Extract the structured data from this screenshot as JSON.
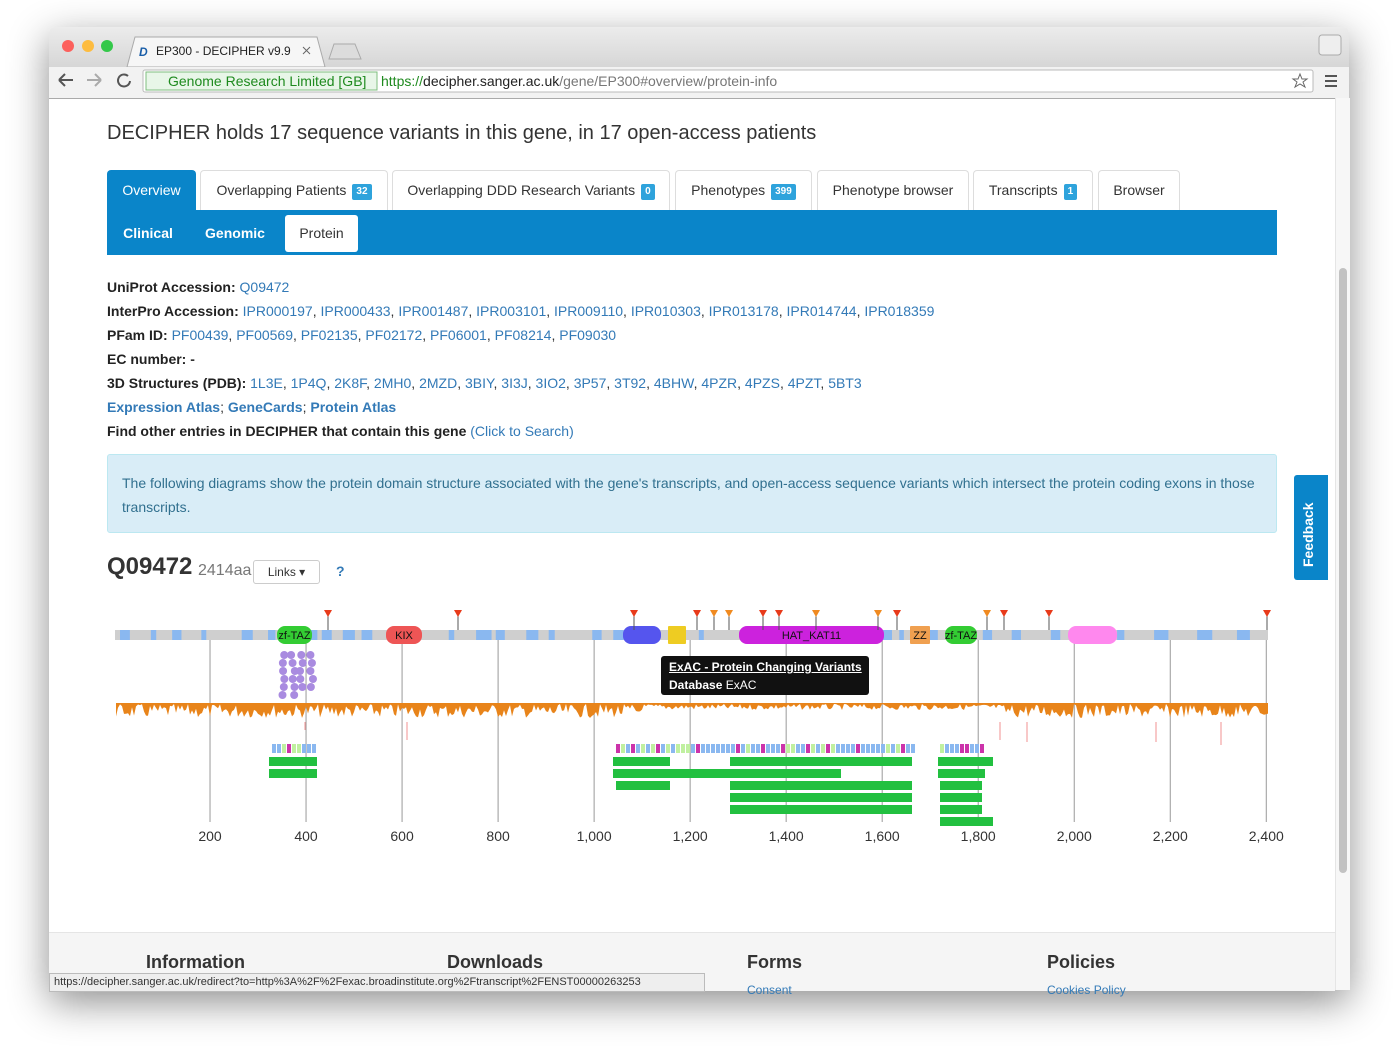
{
  "browser": {
    "tab_title": "EP300 - DECIPHER v9.9",
    "certificate": "Genome Research Limited [GB]",
    "url": {
      "scheme": "https://",
      "host": "decipher.sanger.ac.uk",
      "path": "/gene/EP300#overview/protein-info"
    }
  },
  "page": {
    "heading": "DECIPHER holds 17 sequence variants in this gene, in 17 open-access patients",
    "tabs": [
      {
        "label": "Overview"
      },
      {
        "label": "Overlapping Patients",
        "badge": 32
      },
      {
        "label": "Overlapping DDD Research Variants",
        "badge": 0
      },
      {
        "label": "Phenotypes",
        "badge": 399
      },
      {
        "label": "Phenotype browser"
      },
      {
        "label": "Transcripts",
        "badge": 1
      },
      {
        "label": "Browser"
      }
    ],
    "subtabs": [
      "Clinical",
      "Genomic",
      "Protein"
    ],
    "info": [
      {
        "label": "UniProt Accession:",
        "links": [
          "Q09472"
        ],
        "sep": ", "
      },
      {
        "label": "InterPro Accession:",
        "links": [
          "IPR000197",
          "IPR000433",
          "IPR001487",
          "IPR003101",
          "IPR009110",
          "IPR010303",
          "IPR013178",
          "IPR014744",
          "IPR018359"
        ],
        "sep": ", "
      },
      {
        "label": "PFam ID:",
        "links": [
          "PF00439",
          "PF00569",
          "PF02135",
          "PF02172",
          "PF06001",
          "PF08214",
          "PF09030"
        ],
        "sep": ", "
      },
      {
        "label": "EC number:",
        "value": "-"
      },
      {
        "label": "3D Structures (PDB):",
        "links": [
          "1L3E",
          "1P4Q",
          "2K8F",
          "2MH0",
          "2MZD",
          "3BIY",
          "3I3J",
          "3IO2",
          "3P57",
          "3T92",
          "4BHW",
          "4PZR",
          "4PZS",
          "4PZT",
          "5BT3"
        ],
        "sep": ", "
      },
      {
        "links": [
          "Expression Atlas",
          "GeneCards",
          "Protein Atlas"
        ],
        "sep": "; ",
        "bold_links": true
      },
      {
        "label": "Find other entries in DECIPHER that contain this gene",
        "links": [
          "(Click to Search)"
        ],
        "sep": ", "
      }
    ],
    "alert": "The following diagrams show the protein domain structure associated with the gene's transcripts, and open-access sequence variants which intersect the protein coding exons in those transcripts.",
    "protein": {
      "accession": "Q09472",
      "length": "2414aa",
      "links_button": "Links",
      "help": "?",
      "domains": [
        "zf-TAZ",
        "KIX",
        "HAT_KAT11",
        "ZZ",
        "zf-TAZ"
      ],
      "tooltip": {
        "title": "ExAC - Protein Changing Variants",
        "db_label": "Database",
        "db_value": "ExAC"
      },
      "xlim": [
        0,
        2414
      ],
      "ticks": [
        200,
        400,
        600,
        800,
        {
          "value": 1000,
          "label": "1,000"
        },
        {
          "value": 1200,
          "label": "1,200"
        },
        {
          "value": 1400,
          "label": "1,400"
        },
        {
          "value": 1600,
          "label": "1,600"
        },
        {
          "value": 1800,
          "label": "1,800"
        },
        {
          "value": 2000,
          "label": "2,000"
        },
        {
          "value": 2200,
          "label": "2,200"
        },
        {
          "value": 2400,
          "label": "2,400"
        }
      ]
    },
    "feedback": "Feedback",
    "footer": [
      {
        "heading": "Information"
      },
      {
        "heading": "Downloads"
      },
      {
        "heading": "Forms",
        "links": [
          "Consent"
        ]
      },
      {
        "heading": "Policies",
        "links": [
          "Cookies Policy"
        ]
      }
    ]
  },
  "status_url": "https://decipher.sanger.ac.uk/redirect?to=http%3A%2F%2Fexac.broadinstitute.org%2Ftranscript%2FENST00000263253"
}
